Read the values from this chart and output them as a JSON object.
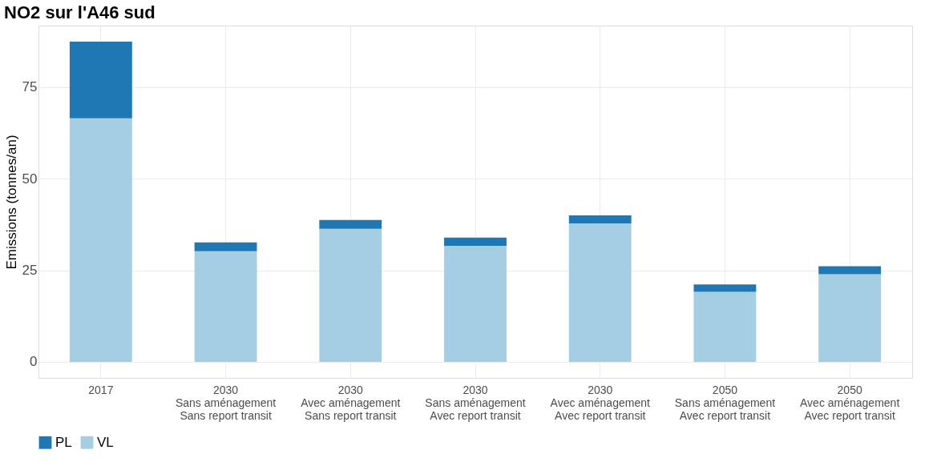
{
  "chart_data": {
    "type": "bar",
    "title": "NO2 sur l'A46 sud",
    "ylabel": "Emissions (tonnes/an)",
    "categories": [
      "2017",
      "2030\nSans aménagement\nSans report transit",
      "2030\nAvec aménagement\nSans report transit",
      "2030\nSans aménagement\nAvec report transit",
      "2030\nAvec aménagement\nAvec report transit",
      "2050\nSans aménagement\nAvec report transit",
      "2050\nAvec aménagement\nAvec report transit"
    ],
    "stacked": true,
    "series": [
      {
        "name": "VL",
        "color": "#a6cee3",
        "values": [
          66.5,
          30.2,
          36.3,
          31.7,
          37.8,
          19.1,
          23.9
        ]
      },
      {
        "name": "PL",
        "color": "#1f78b4",
        "values": [
          20.9,
          2.4,
          2.4,
          2.2,
          2.2,
          2.0,
          2.2
        ]
      }
    ],
    "ylim": [
      -4.4,
      91.8
    ],
    "yticks": [
      0,
      25,
      50,
      75
    ],
    "grid": true,
    "legend": "bottom"
  }
}
